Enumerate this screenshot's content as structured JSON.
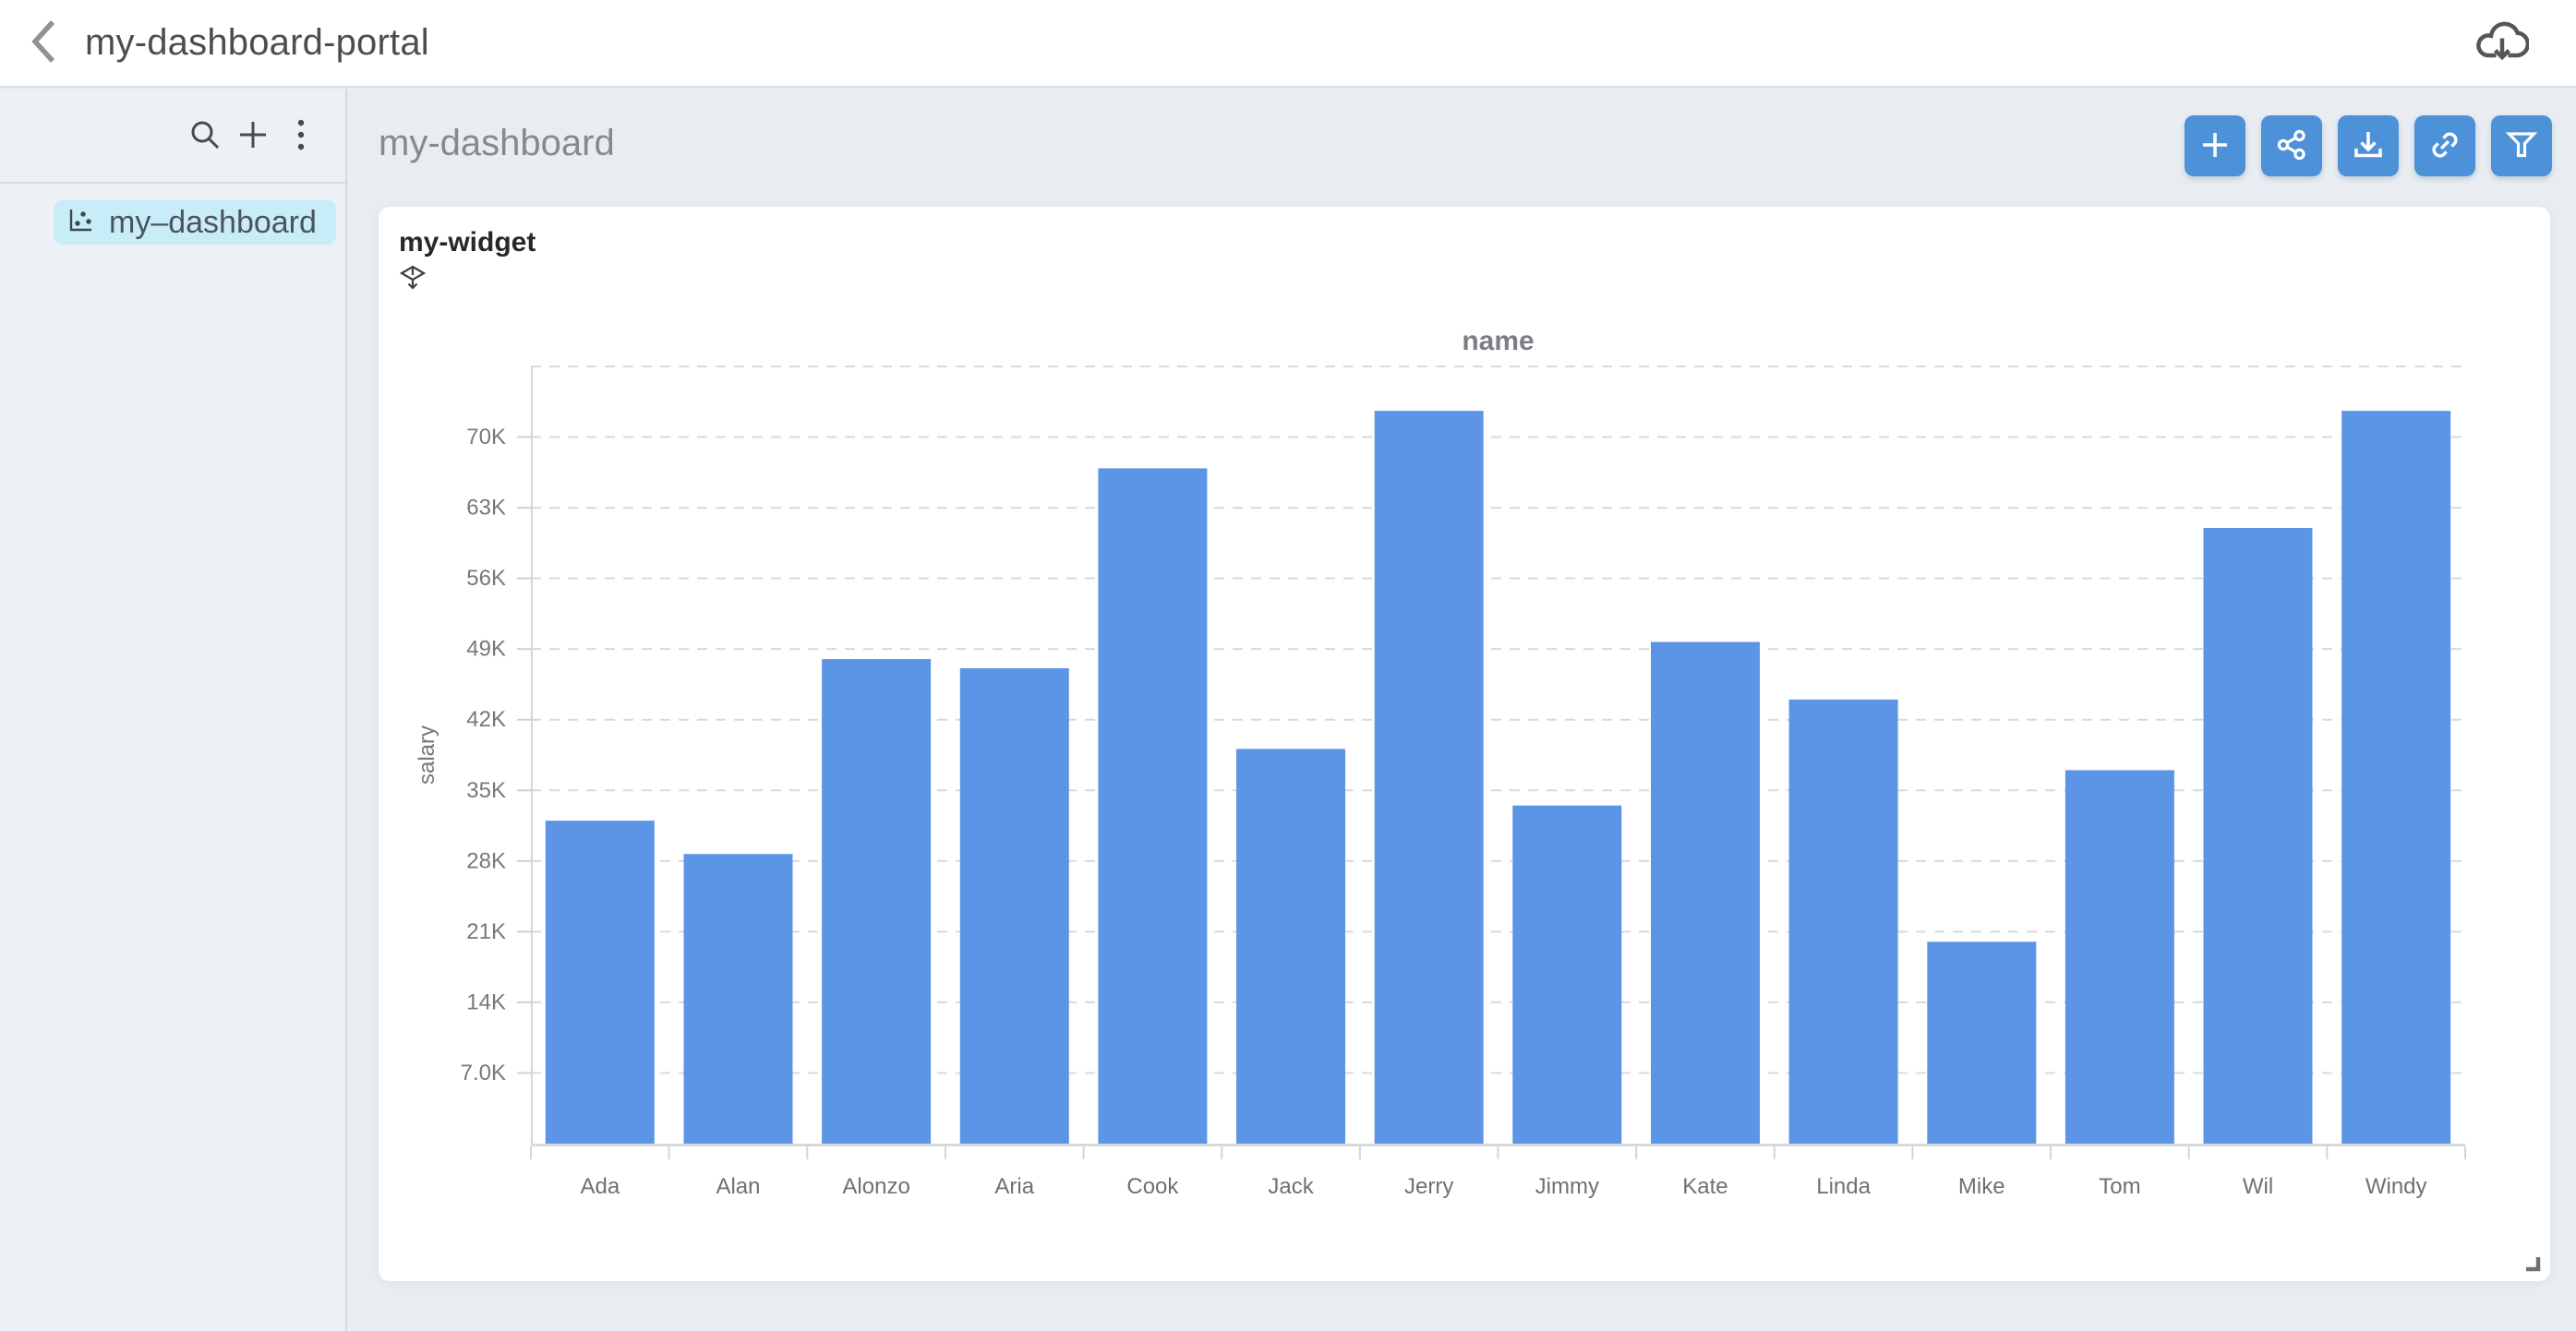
{
  "header": {
    "title": "my-dashboard-portal",
    "back_icon": "chevron-left",
    "download_icon": "cloud-download"
  },
  "sidebar": {
    "toolbar_icons": [
      "search",
      "plus",
      "kebab-menu"
    ],
    "items": [
      {
        "label": "my–dashboard",
        "icon": "scatter-chart",
        "selected": true
      }
    ]
  },
  "main": {
    "title": "my-dashboard",
    "toolbar_buttons": [
      {
        "name": "add-widget",
        "icon": "plus"
      },
      {
        "name": "share",
        "icon": "share-nodes"
      },
      {
        "name": "download",
        "icon": "download-tray"
      },
      {
        "name": "copy-link",
        "icon": "link-chain"
      },
      {
        "name": "filters",
        "icon": "funnel"
      }
    ]
  },
  "widget": {
    "title": "my-widget",
    "move_icon": "move-widget",
    "resize_icon": "resize-corner"
  },
  "chart_data": {
    "type": "bar",
    "title": "name",
    "xlabel": "name",
    "ylabel": "salary",
    "categories": [
      "Ada",
      "Alan",
      "Alonzo",
      "Aria",
      "Cook",
      "Jack",
      "Jerry",
      "Jimmy",
      "Kate",
      "Linda",
      "Mike",
      "Tom",
      "Wil",
      "Windy"
    ],
    "values": [
      32000,
      28700,
      48000,
      47100,
      66900,
      39100,
      72600,
      33500,
      49700,
      44000,
      20000,
      37000,
      61000,
      72600
    ],
    "y_tick_labels": [
      "7.0K",
      "14K",
      "21K",
      "28K",
      "35K",
      "42K",
      "49K",
      "56K",
      "63K",
      "70K"
    ],
    "y_tick_step": 7000,
    "ylim": [
      0,
      77000
    ],
    "grid": "horizontal-dashed",
    "legend": "none",
    "bar_color": "#5C95E6"
  },
  "colors": {
    "accent_button": "#4D91D9",
    "bar": "#5C95E6",
    "selected_item_bg": "#C9ECF9",
    "page_bg": "#E9EDF1",
    "sidebar_bg": "#EDF0F4",
    "card_bg": "#FFFFFF",
    "gridline": "#D9D9D9"
  }
}
